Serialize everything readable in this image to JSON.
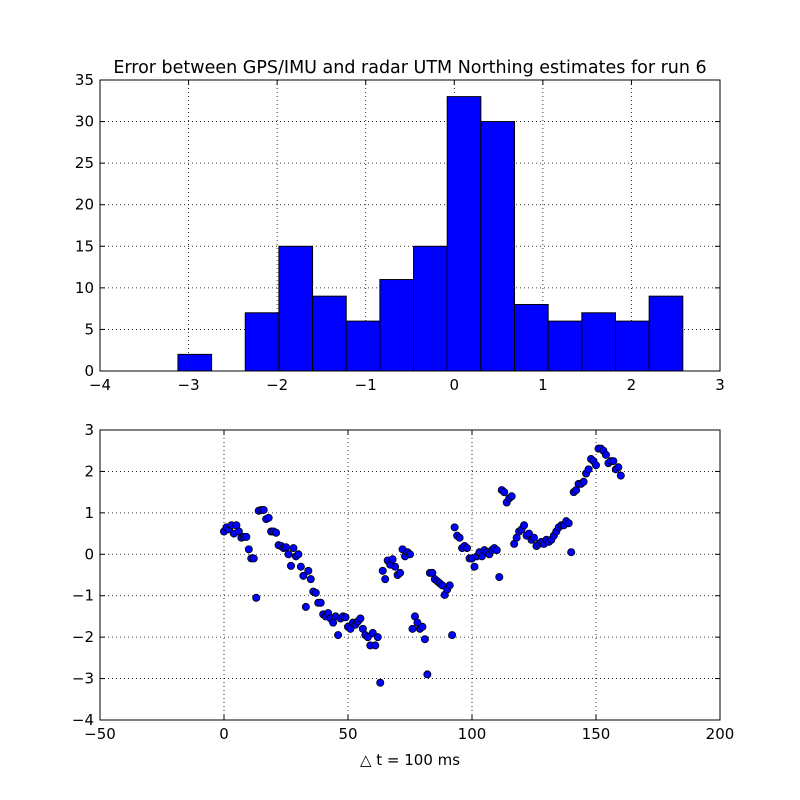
{
  "chart_data": [
    {
      "type": "bar",
      "title": "Error between GPS/IMU and radar UTM Northing estimates for run 6",
      "xlabel": "",
      "ylabel": "",
      "xlim": [
        -4,
        3
      ],
      "ylim": [
        0,
        35
      ],
      "grid": true,
      "xticks": [
        -4,
        -3,
        -2,
        -1,
        0,
        1,
        2,
        3
      ],
      "yticks": [
        0,
        5,
        10,
        15,
        20,
        25,
        30,
        35
      ],
      "bins": [
        {
          "left": -3.12,
          "right": -2.74,
          "count": 2
        },
        {
          "left": -2.74,
          "right": -2.36,
          "count": 0
        },
        {
          "left": -2.36,
          "right": -1.98,
          "count": 7
        },
        {
          "left": -1.98,
          "right": -1.6,
          "count": 15
        },
        {
          "left": -1.6,
          "right": -1.22,
          "count": 9
        },
        {
          "left": -1.22,
          "right": -0.84,
          "count": 6
        },
        {
          "left": -0.84,
          "right": -0.46,
          "count": 11
        },
        {
          "left": -0.46,
          "right": -0.08,
          "count": 15
        },
        {
          "left": -0.08,
          "right": 0.3,
          "count": 33
        },
        {
          "left": 0.3,
          "right": 0.68,
          "count": 30
        },
        {
          "left": 0.68,
          "right": 1.06,
          "count": 8
        },
        {
          "left": 1.06,
          "right": 1.44,
          "count": 6
        },
        {
          "left": 1.44,
          "right": 1.82,
          "count": 7
        },
        {
          "left": 1.82,
          "right": 2.2,
          "count": 6
        },
        {
          "left": 2.2,
          "right": 2.58,
          "count": 9
        }
      ]
    },
    {
      "type": "scatter",
      "xlabel": "△ t = 100 ms",
      "ylabel": "",
      "xlim": [
        -50,
        200
      ],
      "ylim": [
        -4,
        3
      ],
      "grid": true,
      "xticks": [
        -50,
        0,
        50,
        100,
        150,
        200
      ],
      "yticks": [
        -4,
        -3,
        -2,
        -1,
        0,
        1,
        2,
        3
      ],
      "points": [
        [
          0,
          0.55
        ],
        [
          1,
          0.65
        ],
        [
          2,
          0.6
        ],
        [
          3,
          0.7
        ],
        [
          4,
          0.5
        ],
        [
          5,
          0.7
        ],
        [
          6,
          0.55
        ],
        [
          7,
          0.4
        ],
        [
          8,
          0.42
        ],
        [
          9,
          0.42
        ],
        [
          10,
          0.12
        ],
        [
          11,
          -0.1
        ],
        [
          12,
          -0.1
        ],
        [
          13,
          -1.05
        ],
        [
          14,
          1.05
        ],
        [
          15,
          1.07
        ],
        [
          16,
          1.07
        ],
        [
          17,
          0.85
        ],
        [
          18,
          0.88
        ],
        [
          19,
          0.55
        ],
        [
          20,
          0.55
        ],
        [
          21,
          0.52
        ],
        [
          22,
          0.22
        ],
        [
          23,
          0.2
        ],
        [
          24,
          0.15
        ],
        [
          25,
          0.17
        ],
        [
          26,
          0.0
        ],
        [
          27,
          -0.28
        ],
        [
          28,
          0.15
        ],
        [
          29,
          -0.05
        ],
        [
          30,
          0.0
        ],
        [
          31,
          -0.3
        ],
        [
          32,
          -0.52
        ],
        [
          33,
          -1.27
        ],
        [
          34,
          -0.4
        ],
        [
          35,
          -0.6
        ],
        [
          36,
          -0.9
        ],
        [
          37,
          -0.93
        ],
        [
          38,
          -1.17
        ],
        [
          39,
          -1.17
        ],
        [
          40,
          -1.45
        ],
        [
          41,
          -1.5
        ],
        [
          42,
          -1.42
        ],
        [
          43,
          -1.55
        ],
        [
          44,
          -1.65
        ],
        [
          45,
          -1.5
        ],
        [
          46,
          -1.95
        ],
        [
          47,
          -1.55
        ],
        [
          48,
          -1.5
        ],
        [
          49,
          -1.52
        ],
        [
          50,
          -1.75
        ],
        [
          51,
          -1.8
        ],
        [
          52,
          -1.65
        ],
        [
          53,
          -1.7
        ],
        [
          54,
          -1.62
        ],
        [
          55,
          -1.55
        ],
        [
          56,
          -1.8
        ],
        [
          57,
          -1.95
        ],
        [
          58,
          -2.0
        ],
        [
          59,
          -2.2
        ],
        [
          60,
          -1.9
        ],
        [
          61,
          -2.2
        ],
        [
          62,
          -2.0
        ],
        [
          63,
          -3.1
        ],
        [
          64,
          -0.4
        ],
        [
          65,
          -0.6
        ],
        [
          66,
          -0.15
        ],
        [
          67,
          -0.25
        ],
        [
          68,
          -0.12
        ],
        [
          69,
          -0.3
        ],
        [
          70,
          -0.5
        ],
        [
          71,
          -0.45
        ],
        [
          72,
          0.12
        ],
        [
          73,
          -0.05
        ],
        [
          74,
          0.05
        ],
        [
          75,
          0.0
        ],
        [
          76,
          -1.8
        ],
        [
          77,
          -1.5
        ],
        [
          78,
          -1.65
        ],
        [
          79,
          -1.8
        ],
        [
          80,
          -1.75
        ],
        [
          81,
          -2.05
        ],
        [
          82,
          -2.9
        ],
        [
          83,
          -0.45
        ],
        [
          84,
          -0.45
        ],
        [
          85,
          -0.6
        ],
        [
          86,
          -0.65
        ],
        [
          87,
          -0.7
        ],
        [
          88,
          -0.75
        ],
        [
          89,
          -0.98
        ],
        [
          90,
          -0.85
        ],
        [
          91,
          -0.75
        ],
        [
          92,
          -1.95
        ],
        [
          93,
          0.65
        ],
        [
          94,
          0.45
        ],
        [
          95,
          0.4
        ],
        [
          96,
          0.15
        ],
        [
          97,
          0.2
        ],
        [
          98,
          0.15
        ],
        [
          99,
          -0.1
        ],
        [
          100,
          -0.1
        ],
        [
          101,
          -0.3
        ],
        [
          102,
          -0.05
        ],
        [
          103,
          0.05
        ],
        [
          104,
          -0.05
        ],
        [
          105,
          0.1
        ],
        [
          106,
          0.05
        ],
        [
          107,
          0.0
        ],
        [
          108,
          0.1
        ],
        [
          109,
          0.15
        ],
        [
          110,
          0.1
        ],
        [
          111,
          -0.55
        ],
        [
          112,
          1.55
        ],
        [
          113,
          1.5
        ],
        [
          114,
          1.25
        ],
        [
          115,
          1.35
        ],
        [
          116,
          1.4
        ],
        [
          117,
          0.25
        ],
        [
          118,
          0.4
        ],
        [
          119,
          0.55
        ],
        [
          120,
          0.6
        ],
        [
          121,
          0.7
        ],
        [
          122,
          0.45
        ],
        [
          123,
          0.5
        ],
        [
          124,
          0.35
        ],
        [
          125,
          0.4
        ],
        [
          126,
          0.2
        ],
        [
          127,
          0.25
        ],
        [
          128,
          0.3
        ],
        [
          129,
          0.25
        ],
        [
          130,
          0.35
        ],
        [
          131,
          0.3
        ],
        [
          132,
          0.35
        ],
        [
          133,
          0.45
        ],
        [
          134,
          0.55
        ],
        [
          135,
          0.65
        ],
        [
          136,
          0.7
        ],
        [
          137,
          0.7
        ],
        [
          138,
          0.8
        ],
        [
          139,
          0.75
        ],
        [
          140,
          0.05
        ],
        [
          141,
          1.5
        ],
        [
          142,
          1.55
        ],
        [
          143,
          1.7
        ],
        [
          144,
          1.7
        ],
        [
          145,
          1.75
        ],
        [
          146,
          1.95
        ],
        [
          147,
          2.05
        ],
        [
          148,
          2.3
        ],
        [
          149,
          2.25
        ],
        [
          150,
          2.15
        ],
        [
          151,
          2.55
        ],
        [
          152,
          2.55
        ],
        [
          153,
          2.5
        ],
        [
          154,
          2.4
        ],
        [
          155,
          2.2
        ],
        [
          156,
          2.25
        ],
        [
          157,
          2.25
        ],
        [
          158,
          2.05
        ],
        [
          159,
          2.1
        ],
        [
          160,
          1.9
        ]
      ]
    }
  ]
}
